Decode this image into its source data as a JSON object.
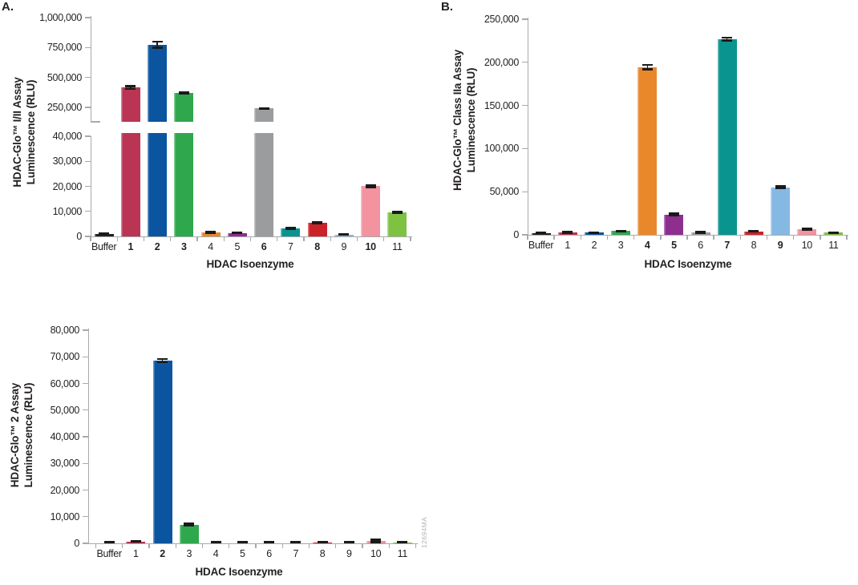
{
  "panels": {
    "a": "A.",
    "b": "B."
  },
  "watermark": "12694MA",
  "colors": {
    "axis": "#a7a9ac",
    "text": "#231f20",
    "error_bar": "#1a1a1a",
    "bar_palette": [
      "#231f20",
      "#b93553",
      "#0b55a0",
      "#2fa84d",
      "#e8882b",
      "#8e2f90",
      "#9a9c9e",
      "#0a948f",
      "#cc2128",
      "#86b8e4",
      "#f2939f",
      "#7fc242"
    ]
  },
  "chart_data": [
    {
      "id": "A",
      "type": "bar",
      "panel_label": "A.",
      "ylabel": [
        "HDAC-Glo™ I/II Assay",
        "Luminescence (RLU)"
      ],
      "xlabel": "HDAC Isoenzyme",
      "axis_break": true,
      "upper_axis": {
        "range": [
          250000,
          1000000
        ],
        "ticks": [
          250000,
          500000,
          750000,
          1000000
        ]
      },
      "lower_axis": {
        "range": [
          0,
          40000
        ],
        "ticks": [
          0,
          10000,
          20000,
          30000,
          40000
        ]
      },
      "grid": false,
      "legend": false,
      "categories": [
        "Buffer",
        "1",
        "2",
        "3",
        "4",
        "5",
        "6",
        "7",
        "8",
        "9",
        "10",
        "11"
      ],
      "bold_categories": [
        "1",
        "2",
        "3",
        "6",
        "8",
        "10"
      ],
      "values": [
        1100,
        415000,
        775000,
        372000,
        1700,
        1400,
        240000,
        3100,
        5300,
        800,
        20100,
        9600
      ],
      "errors": [
        150,
        12000,
        25000,
        4000,
        300,
        150,
        5000,
        250,
        250,
        100,
        400,
        350
      ]
    },
    {
      "id": "B",
      "type": "bar",
      "panel_label": "B.",
      "ylabel": [
        "HDAC-Glo™ Class IIa Assay",
        "Luminescence (RLU)"
      ],
      "xlabel": "HDAC Isoenzyme",
      "axis_break": false,
      "ylim": [
        0,
        250000
      ],
      "yticks": [
        0,
        50000,
        100000,
        150000,
        200000,
        250000
      ],
      "grid": false,
      "legend": false,
      "categories": [
        "Buffer",
        "1",
        "2",
        "3",
        "4",
        "5",
        "6",
        "7",
        "8",
        "9",
        "10",
        "11"
      ],
      "bold_categories": [
        "4",
        "5",
        "7",
        "9"
      ],
      "values": [
        2300,
        2900,
        2700,
        4600,
        194500,
        23300,
        2600,
        227000,
        3900,
        55000,
        6300,
        2700
      ],
      "errors": [
        300,
        400,
        200,
        250,
        2500,
        1200,
        500,
        1800,
        400,
        1200,
        900,
        200
      ]
    },
    {
      "id": "C",
      "type": "bar",
      "panel_label": "",
      "ylabel": [
        "HDAC-Glo™ 2 Assay",
        "Luminescence (RLU)"
      ],
      "xlabel": "HDAC Isoenzyme",
      "axis_break": false,
      "ylim": [
        0,
        80000
      ],
      "yticks": [
        0,
        10000,
        20000,
        30000,
        40000,
        50000,
        60000,
        70000,
        80000
      ],
      "grid": false,
      "legend": false,
      "categories": [
        "Buffer",
        "1",
        "2",
        "3",
        "4",
        "5",
        "6",
        "7",
        "8",
        "9",
        "10",
        "11"
      ],
      "bold_categories": [
        "2"
      ],
      "values": [
        80,
        700,
        68600,
        7000,
        40,
        40,
        100,
        150,
        200,
        50,
        900,
        280
      ],
      "errors": [
        40,
        120,
        600,
        350,
        20,
        20,
        50,
        80,
        120,
        30,
        400,
        120
      ]
    }
  ]
}
